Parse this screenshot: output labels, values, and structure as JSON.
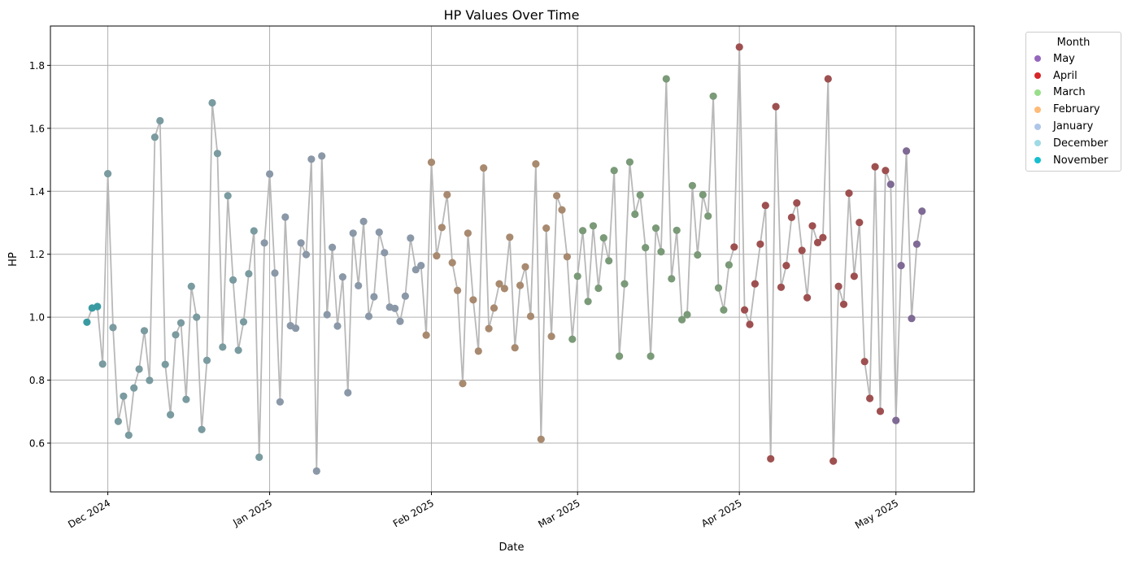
{
  "chart_data": {
    "type": "scatter",
    "title": "HP Values Over Time",
    "xlabel": "Date",
    "ylabel": "HP",
    "x_range": [
      "2024-11-20",
      "2025-05-16"
    ],
    "ylim": [
      0.445,
      1.925
    ],
    "grid": true,
    "legend_position": "outside-top-right",
    "line_color": "#b8b8b8",
    "x_ticks": [
      {
        "date": "2024-12-01",
        "label": "Dec 2024"
      },
      {
        "date": "2025-01-01",
        "label": "Jan 2025"
      },
      {
        "date": "2025-02-01",
        "label": "Feb 2025"
      },
      {
        "date": "2025-03-01",
        "label": "Mar 2025"
      },
      {
        "date": "2025-04-01",
        "label": "Apr 2025"
      },
      {
        "date": "2025-05-01",
        "label": "May 2025"
      }
    ],
    "y_ticks": [
      {
        "value": 0.6,
        "label": "0.6"
      },
      {
        "value": 0.8,
        "label": "0.8"
      },
      {
        "value": 1.0,
        "label": "1.0"
      },
      {
        "value": 1.2,
        "label": "1.2"
      },
      {
        "value": 1.4,
        "label": "1.4"
      },
      {
        "value": 1.6,
        "label": "1.6"
      },
      {
        "value": 1.8,
        "label": "1.8"
      }
    ],
    "legend": {
      "title": "Month",
      "entries": [
        {
          "label": "May",
          "color": "#9467bd"
        },
        {
          "label": "April",
          "color": "#d62728"
        },
        {
          "label": "March",
          "color": "#98df8a"
        },
        {
          "label": "February",
          "color": "#ffbb78"
        },
        {
          "label": "January",
          "color": "#aec7e8"
        },
        {
          "label": "December",
          "color": "#9edae5"
        },
        {
          "label": "November",
          "color": "#17becf"
        }
      ]
    },
    "series": [
      {
        "name": "November",
        "color": "#3a9aa2",
        "points": [
          [
            "2024-11-27",
            0.984
          ],
          [
            "2024-11-28",
            1.029
          ],
          [
            "2024-11-29",
            1.034
          ]
        ]
      },
      {
        "name": "December",
        "color": "#7a9ba0",
        "points": [
          [
            "2024-11-30",
            0.851
          ],
          [
            "2024-12-01",
            1.456
          ],
          [
            "2024-12-02",
            0.967
          ],
          [
            "2024-12-03",
            0.669
          ],
          [
            "2024-12-04",
            0.749
          ],
          [
            "2024-12-05",
            0.625
          ],
          [
            "2024-12-06",
            0.775
          ],
          [
            "2024-12-07",
            0.835
          ],
          [
            "2024-12-08",
            0.957
          ],
          [
            "2024-12-09",
            0.799
          ],
          [
            "2024-12-10",
            1.572
          ],
          [
            "2024-12-11",
            1.624
          ],
          [
            "2024-12-12",
            0.85
          ],
          [
            "2024-12-13",
            0.69
          ],
          [
            "2024-12-14",
            0.944
          ],
          [
            "2024-12-15",
            0.982
          ],
          [
            "2024-12-16",
            0.739
          ],
          [
            "2024-12-17",
            1.098
          ],
          [
            "2024-12-18",
            1.0
          ],
          [
            "2024-12-19",
            0.643
          ],
          [
            "2024-12-20",
            0.863
          ],
          [
            "2024-12-21",
            1.681
          ],
          [
            "2024-12-22",
            1.52
          ],
          [
            "2024-12-23",
            0.905
          ],
          [
            "2024-12-24",
            1.386
          ],
          [
            "2024-12-25",
            1.118
          ],
          [
            "2024-12-26",
            0.895
          ],
          [
            "2024-12-27",
            0.985
          ],
          [
            "2024-12-28",
            1.138
          ],
          [
            "2024-12-29",
            1.274
          ],
          [
            "2024-12-30",
            0.555
          ]
        ]
      },
      {
        "name": "January",
        "color": "#8a98a8",
        "points": [
          [
            "2024-12-31",
            1.236
          ],
          [
            "2025-01-01",
            1.455
          ],
          [
            "2025-01-02",
            1.14
          ],
          [
            "2025-01-03",
            0.731
          ],
          [
            "2025-01-04",
            1.318
          ],
          [
            "2025-01-05",
            0.973
          ],
          [
            "2025-01-06",
            0.965
          ],
          [
            "2025-01-07",
            1.236
          ],
          [
            "2025-01-08",
            1.199
          ],
          [
            "2025-01-09",
            1.502
          ],
          [
            "2025-01-10",
            0.511
          ],
          [
            "2025-01-11",
            1.512
          ],
          [
            "2025-01-12",
            1.008
          ],
          [
            "2025-01-13",
            1.222
          ],
          [
            "2025-01-14",
            0.972
          ],
          [
            "2025-01-15",
            1.128
          ],
          [
            "2025-01-16",
            0.76
          ],
          [
            "2025-01-17",
            1.267
          ],
          [
            "2025-01-18",
            1.1
          ],
          [
            "2025-01-19",
            1.304
          ],
          [
            "2025-01-20",
            1.003
          ],
          [
            "2025-01-21",
            1.065
          ],
          [
            "2025-01-22",
            1.27
          ],
          [
            "2025-01-23",
            1.205
          ],
          [
            "2025-01-24",
            1.032
          ],
          [
            "2025-01-25",
            1.028
          ],
          [
            "2025-01-26",
            0.987
          ],
          [
            "2025-01-27",
            1.067
          ],
          [
            "2025-01-28",
            1.251
          ],
          [
            "2025-01-29",
            1.151
          ],
          [
            "2025-01-30",
            1.164
          ]
        ]
      },
      {
        "name": "February",
        "color": "#a88a70",
        "points": [
          [
            "2025-01-31",
            0.943
          ],
          [
            "2025-02-01",
            1.492
          ],
          [
            "2025-02-02",
            1.195
          ],
          [
            "2025-02-03",
            1.285
          ],
          [
            "2025-02-04",
            1.389
          ],
          [
            "2025-02-05",
            1.173
          ],
          [
            "2025-02-06",
            1.085
          ],
          [
            "2025-02-07",
            0.789
          ],
          [
            "2025-02-08",
            1.267
          ],
          [
            "2025-02-09",
            1.055
          ],
          [
            "2025-02-10",
            0.892
          ],
          [
            "2025-02-11",
            1.474
          ],
          [
            "2025-02-12",
            0.964
          ],
          [
            "2025-02-13",
            1.029
          ],
          [
            "2025-02-14",
            1.106
          ],
          [
            "2025-02-15",
            1.091
          ],
          [
            "2025-02-16",
            1.254
          ],
          [
            "2025-02-17",
            0.903
          ],
          [
            "2025-02-18",
            1.101
          ],
          [
            "2025-02-19",
            1.16
          ],
          [
            "2025-02-20",
            1.003
          ],
          [
            "2025-02-21",
            1.487
          ],
          [
            "2025-02-22",
            0.612
          ],
          [
            "2025-02-23",
            1.283
          ],
          [
            "2025-02-24",
            0.939
          ],
          [
            "2025-02-25",
            1.386
          ],
          [
            "2025-02-26",
            1.341
          ],
          [
            "2025-02-27",
            1.192
          ]
        ]
      },
      {
        "name": "March",
        "color": "#7a9a78",
        "points": [
          [
            "2025-02-28",
            0.93
          ],
          [
            "2025-03-01",
            1.13
          ],
          [
            "2025-03-02",
            1.275
          ],
          [
            "2025-03-03",
            1.05
          ],
          [
            "2025-03-04",
            1.29
          ],
          [
            "2025-03-05",
            1.092
          ],
          [
            "2025-03-06",
            1.252
          ],
          [
            "2025-03-07",
            1.179
          ],
          [
            "2025-03-08",
            1.466
          ],
          [
            "2025-03-09",
            0.876
          ],
          [
            "2025-03-10",
            1.106
          ],
          [
            "2025-03-11",
            1.493
          ],
          [
            "2025-03-12",
            1.327
          ],
          [
            "2025-03-13",
            1.388
          ],
          [
            "2025-03-14",
            1.221
          ],
          [
            "2025-03-15",
            0.876
          ],
          [
            "2025-03-16",
            1.283
          ],
          [
            "2025-03-17",
            1.208
          ],
          [
            "2025-03-18",
            1.757
          ],
          [
            "2025-03-19",
            1.122
          ],
          [
            "2025-03-20",
            1.276
          ],
          [
            "2025-03-21",
            0.992
          ],
          [
            "2025-03-22",
            1.008
          ],
          [
            "2025-03-23",
            1.418
          ],
          [
            "2025-03-24",
            1.198
          ],
          [
            "2025-03-25",
            1.389
          ],
          [
            "2025-03-26",
            1.321
          ],
          [
            "2025-03-27",
            1.702
          ],
          [
            "2025-03-28",
            1.093
          ],
          [
            "2025-03-29",
            1.023
          ],
          [
            "2025-03-30",
            1.166
          ]
        ]
      },
      {
        "name": "April",
        "color": "#9e5050",
        "points": [
          [
            "2025-03-31",
            1.223
          ],
          [
            "2025-04-01",
            1.858
          ],
          [
            "2025-04-02",
            1.023
          ],
          [
            "2025-04-03",
            0.977
          ],
          [
            "2025-04-04",
            1.106
          ],
          [
            "2025-04-05",
            1.232
          ],
          [
            "2025-04-06",
            1.355
          ],
          [
            "2025-04-07",
            0.55
          ],
          [
            "2025-04-08",
            1.669
          ],
          [
            "2025-04-09",
            1.095
          ],
          [
            "2025-04-10",
            1.164
          ],
          [
            "2025-04-11",
            1.317
          ],
          [
            "2025-04-12",
            1.363
          ],
          [
            "2025-04-13",
            1.212
          ],
          [
            "2025-04-14",
            1.062
          ],
          [
            "2025-04-15",
            1.29
          ],
          [
            "2025-04-16",
            1.237
          ],
          [
            "2025-04-17",
            1.253
          ],
          [
            "2025-04-18",
            1.757
          ],
          [
            "2025-04-19",
            0.543
          ],
          [
            "2025-04-20",
            1.098
          ],
          [
            "2025-04-21",
            1.041
          ],
          [
            "2025-04-22",
            1.394
          ],
          [
            "2025-04-23",
            1.13
          ],
          [
            "2025-04-24",
            1.301
          ],
          [
            "2025-04-25",
            0.859
          ],
          [
            "2025-04-26",
            0.742
          ],
          [
            "2025-04-27",
            1.478
          ],
          [
            "2025-04-28",
            0.701
          ],
          [
            "2025-04-29",
            1.466
          ]
        ]
      },
      {
        "name": "May",
        "color": "#7e6a94",
        "points": [
          [
            "2025-04-30",
            1.422
          ],
          [
            "2025-05-01",
            0.672
          ],
          [
            "2025-05-02",
            1.164
          ],
          [
            "2025-05-03",
            1.528
          ],
          [
            "2025-05-04",
            0.996
          ],
          [
            "2025-05-05",
            1.232
          ],
          [
            "2025-05-06",
            1.337
          ]
        ]
      }
    ]
  }
}
